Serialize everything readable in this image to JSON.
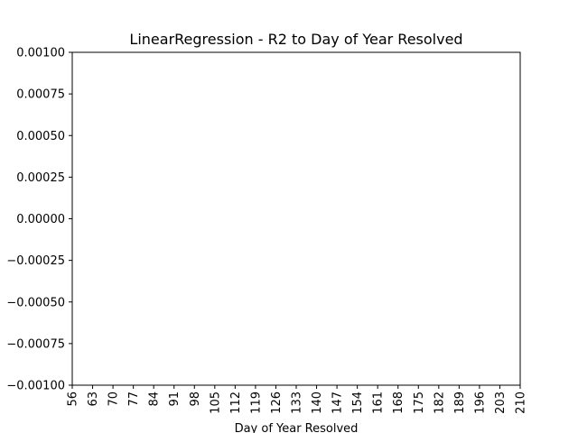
{
  "chart_data": {
    "type": "line",
    "title": "LinearRegression - R2 to Day of Year Resolved",
    "xlabel": "Day of Year Resolved",
    "ylabel": "",
    "x_ticks": [
      "56",
      "63",
      "70",
      "77",
      "84",
      "91",
      "98",
      "105",
      "112",
      "119",
      "126",
      "133",
      "140",
      "147",
      "154",
      "161",
      "168",
      "175",
      "182",
      "189",
      "196",
      "203",
      "210"
    ],
    "y_ticks": [
      "0.00100",
      "0.00075",
      "0.00050",
      "0.00025",
      "0.00000",
      "−0.00025",
      "−0.00050",
      "−0.00075",
      "−0.00100"
    ],
    "xlim": [
      56,
      210
    ],
    "ylim": [
      -0.001,
      0.001
    ],
    "series": [],
    "grid": false,
    "legend": "none"
  }
}
